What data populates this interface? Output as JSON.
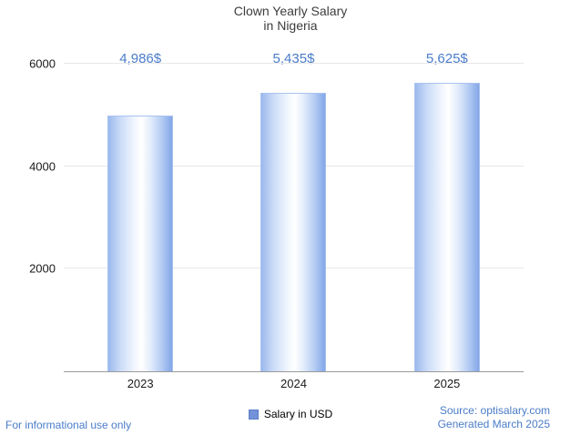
{
  "title": {
    "line1": "Clown Yearly Salary",
    "line2": "in Nigeria"
  },
  "chart_data": {
    "type": "bar",
    "title": "Clown Yearly Salary in Nigeria",
    "categories": [
      "2023",
      "2024",
      "2025"
    ],
    "values": [
      4986,
      5435,
      5625
    ],
    "value_labels": [
      "4,986$",
      "5,435$",
      "5,625$"
    ],
    "series_name": "Salary in USD",
    "xlabel": "",
    "ylabel": "",
    "ylim": [
      0,
      6000
    ],
    "yticks": [
      2000,
      4000,
      6000
    ],
    "grid": true,
    "legend_position": "bottom-center"
  },
  "legend": {
    "label": "Salary in USD",
    "marker_color": "#7291d8"
  },
  "footer": {
    "left": "For informational use only",
    "source": "Source: optisalary.com",
    "generated": "Generated March 2025"
  },
  "colors": {
    "accent_text": "#4a7cc9",
    "bar_edge": "#83a6e8",
    "bar_center": "#ffffff",
    "gridline": "#e7e7e7",
    "axis_line": "#9a9a9a",
    "title_text": "#3c3c3c"
  }
}
